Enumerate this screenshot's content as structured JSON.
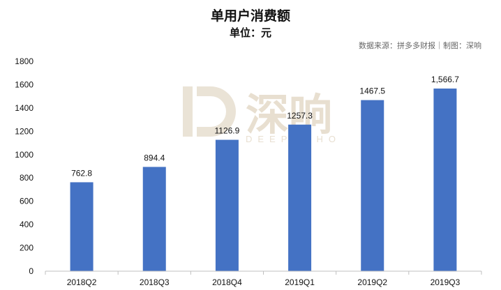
{
  "title": "单用户消费额",
  "subtitle": "单位：元",
  "source": "数据来源：拼多多财报｜制图：深响",
  "watermark": {
    "text": "深响",
    "sub": "DEEPECHO"
  },
  "colors": {
    "bar": "#4472C4",
    "axis": "#bfbfbf",
    "text": "#111111",
    "watermark": "#e6dccc"
  },
  "chart_data": {
    "type": "bar",
    "title": "单用户消费额",
    "subtitle": "单位：元",
    "categories": [
      "2018Q2",
      "2018Q3",
      "2018Q4",
      "2019Q1",
      "2019Q2",
      "2019Q3"
    ],
    "values": [
      762.8,
      894.4,
      1126.9,
      1257.3,
      1467.5,
      1566.7
    ],
    "value_labels": [
      "762.8",
      "894.4",
      "1126.9",
      "1257.3",
      "1467.5",
      "1,566.7"
    ],
    "ylim": [
      0,
      1800
    ],
    "yticks": [
      0,
      200,
      400,
      600,
      800,
      1000,
      1200,
      1400,
      1600,
      1800
    ],
    "grid": false,
    "xlabel": "",
    "ylabel": ""
  }
}
